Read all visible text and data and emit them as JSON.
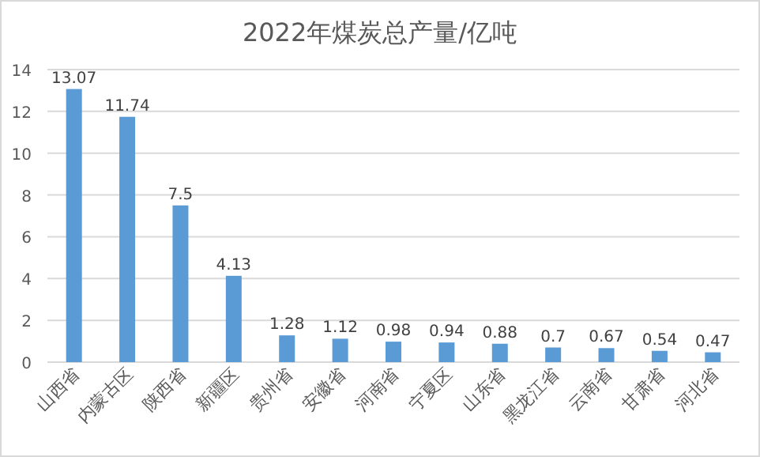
{
  "chart_data": {
    "type": "bar",
    "title": "2022年煤炭总产量/亿吨",
    "categories": [
      "山西省",
      "内蒙古区",
      "陕西省",
      "新疆区",
      "贵州省",
      "安徽省",
      "河南省",
      "宁夏区",
      "山东省",
      "黑龙江省",
      "云南省",
      "甘肃省",
      "河北省"
    ],
    "values": [
      13.07,
      11.74,
      7.5,
      4.13,
      1.28,
      1.12,
      0.98,
      0.94,
      0.88,
      0.7,
      0.67,
      0.54,
      0.47
    ],
    "color": "#5b9bd5",
    "ylim": [
      0,
      14
    ],
    "yticks": [
      0,
      2,
      4,
      6,
      8,
      10,
      12,
      14
    ],
    "grid": "y",
    "data_labels": true
  }
}
